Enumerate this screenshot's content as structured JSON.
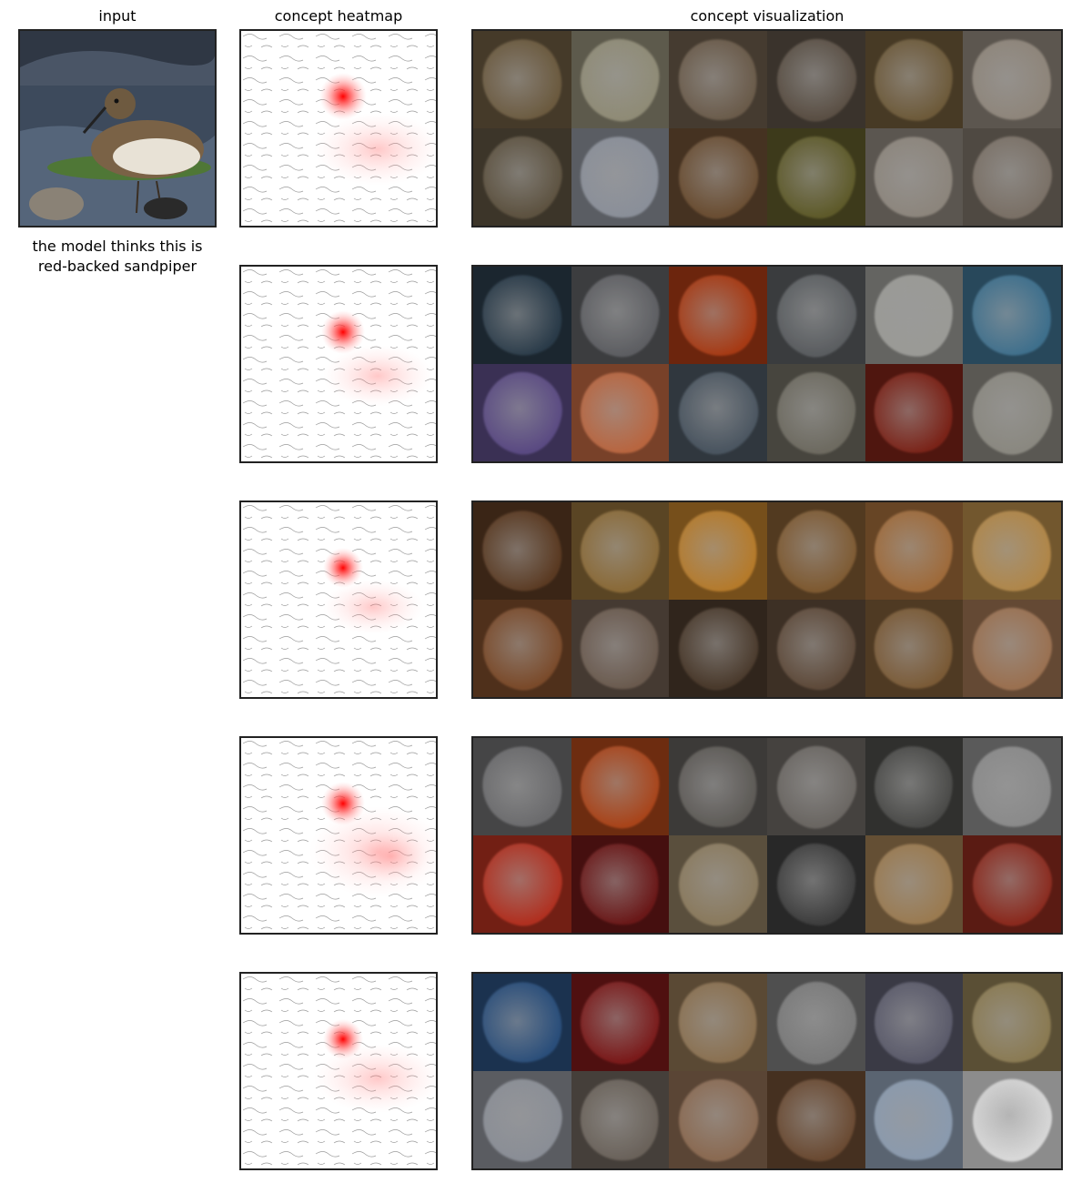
{
  "titles": {
    "input": "input",
    "heatmap": "concept heatmap",
    "visualization": "concept visualization"
  },
  "caption": {
    "line1": "the model thinks this is",
    "line2": "red-backed sandpiper"
  },
  "colors": {
    "heat_red": "#ff0000",
    "frame": "#222222"
  },
  "concept_rows": [
    {
      "tiles": [
        "#6b5a3f",
        "#8f8b76",
        "#6a5b4a",
        "#5a4f44",
        "#6d5a3a",
        "#8e857a",
        "#5d5240",
        "#8a8f99",
        "#6a4e33",
        "#5e5a2a",
        "#8c857c",
        "#7a7066"
      ]
    },
    {
      "tiles": [
        "#2a3b49",
        "#5d5e62",
        "#a63a14",
        "#5a5d60",
        "#9a9a96",
        "#3e6f8c",
        "#5a4a82",
        "#b8653f",
        "#4a5560",
        "#6d6a60",
        "#7a2318",
        "#8a8880"
      ]
    },
    {
      "tiles": [
        "#5a3a22",
        "#8a6a38",
        "#b57a2a",
        "#7e5a32",
        "#9e6a3a",
        "#b08648",
        "#7a4a2a",
        "#6a5a4e",
        "#4a3a2c",
        "#5e4a3a",
        "#7a5a36",
        "#9a7050"
      ]
    },
    {
      "tiles": [
        "#6a6a6c",
        "#a8441a",
        "#5d5a56",
        "#6a6662",
        "#4a4a48",
        "#8a8a8a",
        "#b03020",
        "#6a1818",
        "#8a7a5e",
        "#3e3e3e",
        "#9a7a50",
        "#8a2a1e"
      ]
    },
    {
      "tiles": [
        "#2a4e7a",
        "#7a1a1a",
        "#8a7050",
        "#7a7a7a",
        "#5a5a6a",
        "#8a7a52",
        "#8a8e96",
        "#6a625a",
        "#8a6a52",
        "#6a4a32",
        "#8a9aae",
        "#d8d8d8"
      ]
    }
  ]
}
